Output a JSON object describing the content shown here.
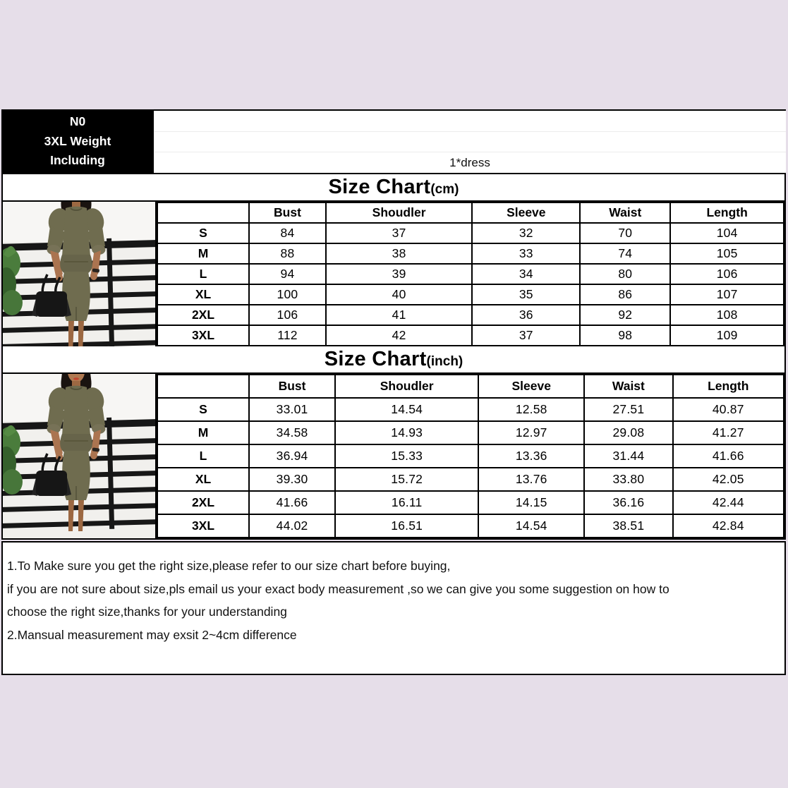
{
  "badge": {
    "lines": [
      "N0",
      "3XL Weight",
      "Including"
    ]
  },
  "header": {
    "included_item": "1*dress"
  },
  "size_chart_cm": {
    "title": "Size Chart",
    "unit": "(cm)",
    "columns": [
      "Bust",
      "Shoudler",
      "Sleeve",
      "Waist",
      "Length"
    ],
    "rows": [
      {
        "size": "S",
        "values": [
          "84",
          "37",
          "32",
          "70",
          "104"
        ]
      },
      {
        "size": "M",
        "values": [
          "88",
          "38",
          "33",
          "74",
          "105"
        ]
      },
      {
        "size": "L",
        "values": [
          "94",
          "39",
          "34",
          "80",
          "106"
        ]
      },
      {
        "size": "XL",
        "values": [
          "100",
          "40",
          "35",
          "86",
          "107"
        ]
      },
      {
        "size": "2XL",
        "values": [
          "106",
          "41",
          "36",
          "92",
          "108"
        ]
      },
      {
        "size": "3XL",
        "values": [
          "112",
          "42",
          "37",
          "98",
          "109"
        ]
      }
    ]
  },
  "size_chart_inch": {
    "title": "Size Chart",
    "unit": "(inch)",
    "columns": [
      "Bust",
      "Shoudler",
      "Sleeve",
      "Waist",
      "Length"
    ],
    "rows": [
      {
        "size": "S",
        "values": [
          "33.01",
          "14.54",
          "12.58",
          "27.51",
          "40.87"
        ]
      },
      {
        "size": "M",
        "values": [
          "34.58",
          "14.93",
          "12.97",
          "29.08",
          "41.27"
        ]
      },
      {
        "size": "L",
        "values": [
          "36.94",
          "15.33",
          "13.36",
          "31.44",
          "41.66"
        ]
      },
      {
        "size": "XL",
        "values": [
          "39.30",
          "15.72",
          "13.76",
          "33.80",
          "42.05"
        ]
      },
      {
        "size": "2XL",
        "values": [
          "41.66",
          "16.11",
          "14.15",
          "36.16",
          "42.44"
        ]
      },
      {
        "size": "3XL",
        "values": [
          "44.02",
          "16.51",
          "14.54",
          "38.51",
          "42.84"
        ]
      }
    ]
  },
  "notes": [
    "1.To Make sure you get the right size,please refer to our size chart before buying,",
    "if you are not sure about size,pls email us your exact body measurement ,so we can give you some suggestion on how to",
    "choose the right size,thanks for your understanding",
    "2.Mansual measurement may exsit 2~4cm difference"
  ],
  "colors": {
    "page_background": "#e6dee9",
    "badge_background": "#000000",
    "badge_text": "#ffffff",
    "table_border": "#000000",
    "dress_olive": "#6f6c4f"
  }
}
